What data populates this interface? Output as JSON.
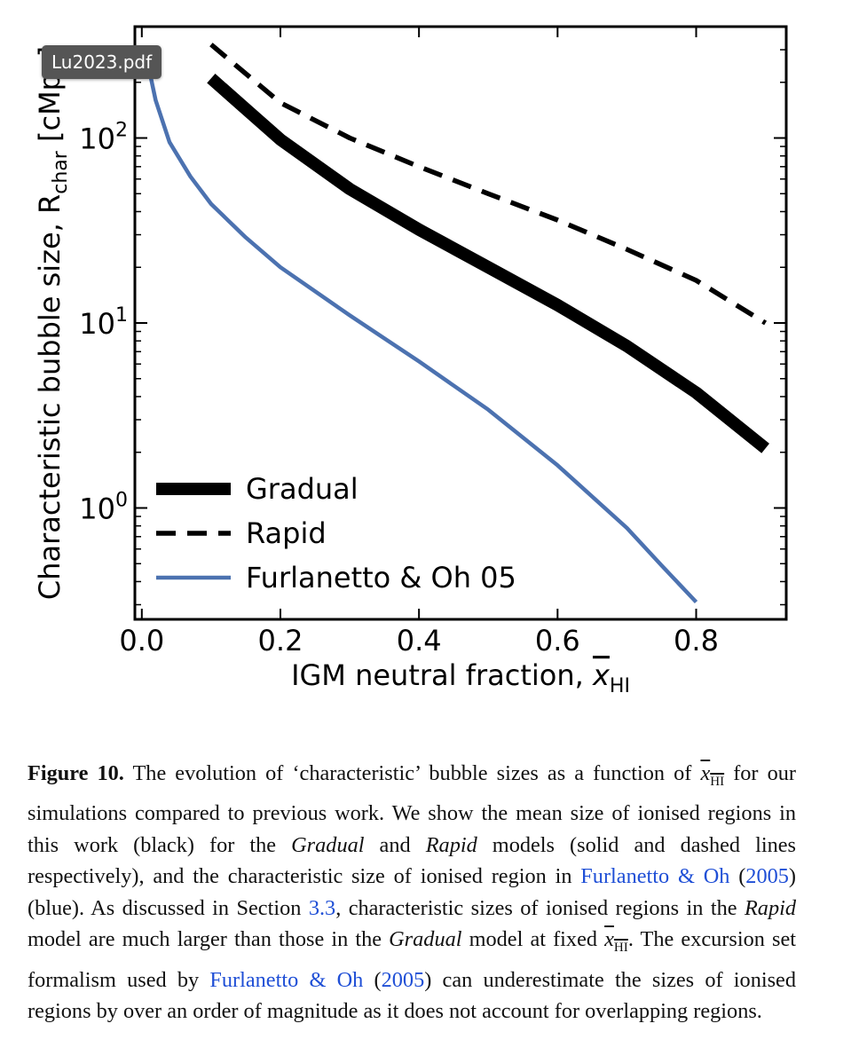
{
  "tooltip": {
    "label": "Lu2023.pdf"
  },
  "chart_data": {
    "type": "line",
    "ylabel": "Characteristic bubble size, R",
    "ylabel_sub": "char",
    "ylabel_unit": "[cMpc]",
    "xlabel": "IGM neutral fraction, ",
    "xlabel_symbol": "x",
    "xlabel_sub": "HI",
    "xlim": [
      -0.01,
      0.93
    ],
    "ylim": [
      0.25,
      400
    ],
    "yscale": "log",
    "xticks": [
      0.0,
      0.2,
      0.4,
      0.6,
      0.8
    ],
    "xtick_labels": [
      "0.0",
      "0.2",
      "0.4",
      "0.6",
      "0.8"
    ],
    "yticks": [
      1,
      10,
      100
    ],
    "ytick_labels": [
      "10",
      "10",
      "10"
    ],
    "ytick_exponents": [
      "0",
      "1",
      "2"
    ],
    "legend_position": "lower-left",
    "series": [
      {
        "name": "Gradual",
        "color": "#000000",
        "style": "solid-thick",
        "x": [
          0.1,
          0.2,
          0.3,
          0.4,
          0.5,
          0.6,
          0.7,
          0.8,
          0.9
        ],
        "y": [
          210,
          98,
          53,
          32,
          20,
          12.5,
          7.5,
          4.2,
          2.1
        ]
      },
      {
        "name": "Rapid",
        "color": "#000000",
        "style": "dashed",
        "x": [
          0.1,
          0.2,
          0.3,
          0.4,
          0.5,
          0.6,
          0.7,
          0.8,
          0.9
        ],
        "y": [
          320,
          155,
          100,
          70,
          50,
          36,
          25,
          17,
          10
        ]
      },
      {
        "name": "Furlanetto & Oh 05",
        "color": "#4c72b0",
        "style": "solid",
        "x": [
          0.005,
          0.01,
          0.02,
          0.04,
          0.07,
          0.1,
          0.15,
          0.2,
          0.3,
          0.4,
          0.5,
          0.6,
          0.7,
          0.75,
          0.8
        ],
        "y": [
          300,
          240,
          160,
          95,
          62,
          44,
          29,
          20,
          11,
          6.2,
          3.4,
          1.7,
          0.78,
          0.49,
          0.31
        ]
      }
    ]
  },
  "caption": {
    "fig_label": "Figure 10.",
    "t1": " The evolution of ‘characteristic’ bubble sizes as a function of ",
    "x_symbol": "x",
    "x_sub": "HI",
    "t2": " for our simulations compared to previous work. We show the mean size of ionised regions in this work (black) for the ",
    "gradual": "Gradual",
    "t3": " and ",
    "rapid": "Rapid",
    "t4": " models (solid and dashed lines respectively), and the characteristic size of ionised region in ",
    "ref1_authors": "Furlanetto & Oh",
    "ref1_open": " (",
    "ref1_year": "2005",
    "ref1_close": ")",
    "t5": " (blue). As discussed in Section ",
    "section_ref": "3.3",
    "t6": ", characteristic sizes of ionised regions in the ",
    "rapid2": "Rapid",
    "t7": " model are much larger than those in the ",
    "gradual2": "Gradual",
    "t8": " model at fixed ",
    "t9": ". The excursion set formalism used by ",
    "ref2_authors": "Furlanetto & Oh",
    "ref2_open": " (",
    "ref2_year": "2005",
    "ref2_close": ")",
    "t10": " can underestimate the sizes of ionised regions by over an order of magnitude as it does not account for overlapping regions."
  }
}
